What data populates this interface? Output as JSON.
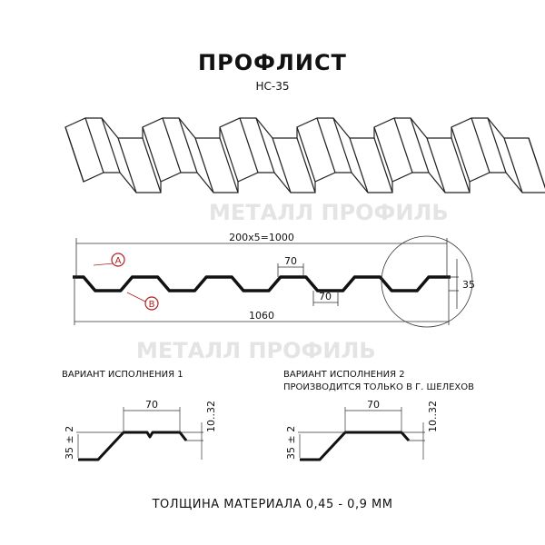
{
  "title": "ПРОФЛИСТ",
  "model": "НС-35",
  "watermark": "МЕТАЛЛ ПРОФИЛЬ",
  "profile": {
    "pitch_dim": "200x5=1000",
    "width_dim": "1060",
    "top_dim": "70",
    "bottom_dim": "70",
    "height_dim": "35",
    "marker_a": "A",
    "marker_b": "B",
    "marker_color": "#b02020"
  },
  "variant1": {
    "label": "ВАРИАНТ ИСПОЛНЕНИЯ 1",
    "width_dim": "70",
    "height_dim": "35 ± 2",
    "edge_dim": "10..32"
  },
  "variant2": {
    "label1": "ВАРИАНТ ИСПОЛНЕНИЯ 2",
    "label2": "ПРОИЗВОДИТСЯ ТОЛЬКО В Г. ШЕЛЕХОВ",
    "width_dim": "70",
    "height_dim": "35 ± 2",
    "edge_dim": "10..32"
  },
  "thickness": "ТОЛЩИНА МАТЕРИАЛА 0,45 - 0,9 ММ"
}
